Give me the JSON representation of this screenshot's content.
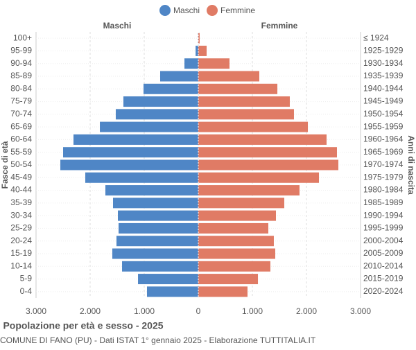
{
  "chart_data": {
    "type": "pyramid",
    "title": "Popolazione per età e sesso - 2025",
    "subtitle": "COMUNE DI FANO (PU) - Dati ISTAT 1° gennaio 2025 - Elaborazione TUTTITALIA.IT",
    "y_label": "Fasce di età",
    "y2_label": "Anni di nascita",
    "categories": [
      "100+",
      "95-99",
      "90-94",
      "85-89",
      "80-84",
      "75-79",
      "70-74",
      "65-69",
      "60-64",
      "55-59",
      "50-54",
      "45-49",
      "40-44",
      "35-39",
      "30-34",
      "25-29",
      "20-24",
      "15-19",
      "10-14",
      "5-9",
      "0-4"
    ],
    "birth_years": [
      "≤ 1924",
      "1925-1929",
      "1930-1934",
      "1935-1939",
      "1940-1944",
      "1945-1949",
      "1950-1954",
      "1955-1959",
      "1960-1964",
      "1965-1969",
      "1970-1974",
      "1975-1979",
      "1980-1984",
      "1985-1989",
      "1990-1994",
      "1995-1999",
      "2000-2004",
      "2005-2009",
      "2010-2014",
      "2015-2019",
      "2020-2024"
    ],
    "series": [
      {
        "name": "Maschi",
        "color": "#4f86c6",
        "values": [
          5,
          50,
          256,
          705,
          1013,
          1385,
          1526,
          1820,
          2308,
          2500,
          2551,
          2090,
          1718,
          1577,
          1487,
          1474,
          1513,
          1590,
          1410,
          1115,
          949
        ]
      },
      {
        "name": "Femmine",
        "color": "#e07b65",
        "values": [
          25,
          154,
          577,
          1128,
          1462,
          1692,
          1769,
          2026,
          2372,
          2564,
          2590,
          2231,
          1872,
          1590,
          1436,
          1295,
          1397,
          1423,
          1333,
          1103,
          910
        ]
      }
    ],
    "xlim": [
      -3000,
      3000
    ],
    "xticks": [
      {
        "value": -3000,
        "label": "3.000"
      },
      {
        "value": -2000,
        "label": "2.000"
      },
      {
        "value": -1000,
        "label": "1.000"
      },
      0,
      {
        "value": 1000,
        "label": "1.000"
      },
      {
        "value": 2000,
        "label": "2.000"
      },
      {
        "value": 3000,
        "label": "3.000"
      }
    ],
    "grid": true
  }
}
